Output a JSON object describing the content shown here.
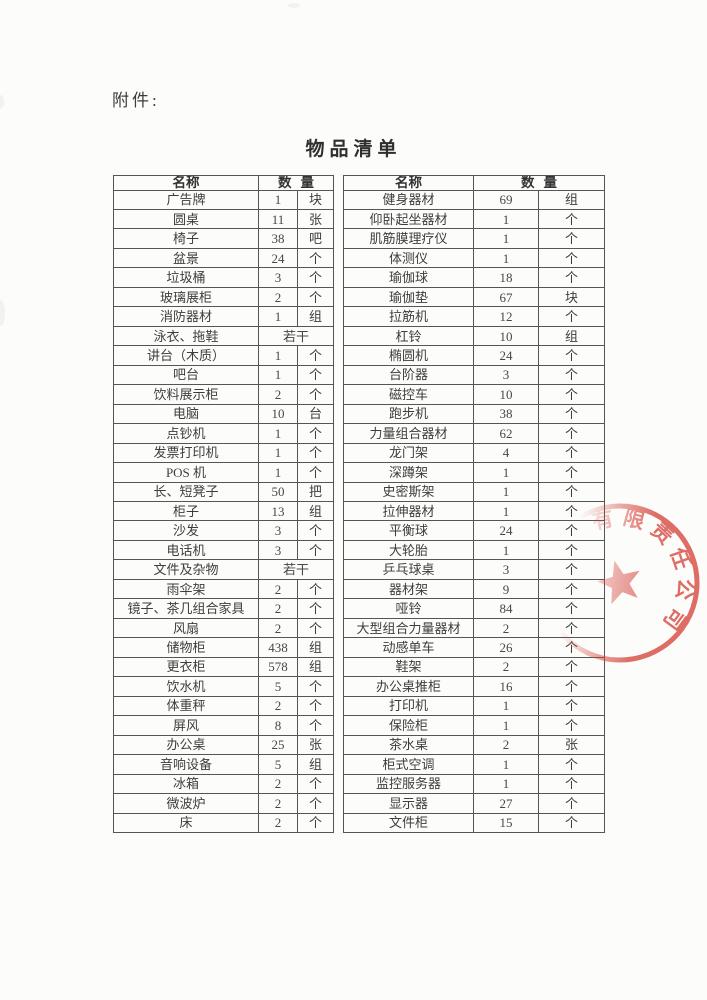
{
  "page": {
    "attachment_label": "附件:",
    "title": "物品清单"
  },
  "tables": [
    {
      "header": {
        "name": "名称",
        "quantity": "数量"
      },
      "rows": [
        {
          "name": "广告牌",
          "quantity": "1",
          "unit": "块"
        },
        {
          "name": "圆桌",
          "quantity": "11",
          "unit": "张"
        },
        {
          "name": "椅子",
          "quantity": "38",
          "unit": "吧"
        },
        {
          "name": "盆景",
          "quantity": "24",
          "unit": "个"
        },
        {
          "name": "垃圾桶",
          "quantity": "3",
          "unit": "个"
        },
        {
          "name": "玻璃展柜",
          "quantity": "2",
          "unit": "个"
        },
        {
          "name": "消防器材",
          "quantity": "1",
          "unit": "组"
        },
        {
          "name": "泳衣、拖鞋",
          "quantity": "若干",
          "unit": null
        },
        {
          "name": "讲台（木质）",
          "quantity": "1",
          "unit": "个"
        },
        {
          "name": "吧台",
          "quantity": "1",
          "unit": "个"
        },
        {
          "name": "饮料展示柜",
          "quantity": "2",
          "unit": "个"
        },
        {
          "name": "电脑",
          "quantity": "10",
          "unit": "台"
        },
        {
          "name": "点钞机",
          "quantity": "1",
          "unit": "个"
        },
        {
          "name": "发票打印机",
          "quantity": "1",
          "unit": "个"
        },
        {
          "name": "POS 机",
          "quantity": "1",
          "unit": "个"
        },
        {
          "name": "长、短凳子",
          "quantity": "50",
          "unit": "把"
        },
        {
          "name": "柜子",
          "quantity": "13",
          "unit": "组"
        },
        {
          "name": "沙发",
          "quantity": "3",
          "unit": "个"
        },
        {
          "name": "电话机",
          "quantity": "3",
          "unit": "个"
        },
        {
          "name": "文件及杂物",
          "quantity": "若干",
          "unit": null
        },
        {
          "name": "雨伞架",
          "quantity": "2",
          "unit": "个"
        },
        {
          "name": "镜子、茶几组合家具",
          "quantity": "2",
          "unit": "个"
        },
        {
          "name": "风扇",
          "quantity": "2",
          "unit": "个"
        },
        {
          "name": "储物柜",
          "quantity": "438",
          "unit": "组"
        },
        {
          "name": "更衣柜",
          "quantity": "578",
          "unit": "组"
        },
        {
          "name": "饮水机",
          "quantity": "5",
          "unit": "个"
        },
        {
          "name": "体重秤",
          "quantity": "2",
          "unit": "个"
        },
        {
          "name": "屏风",
          "quantity": "8",
          "unit": "个"
        },
        {
          "name": "办公桌",
          "quantity": "25",
          "unit": "张"
        },
        {
          "name": "音响设备",
          "quantity": "5",
          "unit": "组"
        },
        {
          "name": "冰箱",
          "quantity": "2",
          "unit": "个"
        },
        {
          "name": "微波炉",
          "quantity": "2",
          "unit": "个"
        },
        {
          "name": "床",
          "quantity": "2",
          "unit": "个"
        }
      ]
    },
    {
      "header": {
        "name": "名称",
        "quantity": "数量"
      },
      "rows": [
        {
          "name": "健身器材",
          "quantity": "69",
          "unit": "组"
        },
        {
          "name": "仰卧起坐器材",
          "quantity": "1",
          "unit": "个"
        },
        {
          "name": "肌筋膜理疗仪",
          "quantity": "1",
          "unit": "个"
        },
        {
          "name": "体测仪",
          "quantity": "1",
          "unit": "个"
        },
        {
          "name": "瑜伽球",
          "quantity": "18",
          "unit": "个"
        },
        {
          "name": "瑜伽垫",
          "quantity": "67",
          "unit": "块"
        },
        {
          "name": "拉筋机",
          "quantity": "12",
          "unit": "个"
        },
        {
          "name": "杠铃",
          "quantity": "10",
          "unit": "组"
        },
        {
          "name": "椭圆机",
          "quantity": "24",
          "unit": "个"
        },
        {
          "name": "台阶器",
          "quantity": "3",
          "unit": "个"
        },
        {
          "name": "磁控车",
          "quantity": "10",
          "unit": "个"
        },
        {
          "name": "跑步机",
          "quantity": "38",
          "unit": "个"
        },
        {
          "name": "力量组合器材",
          "quantity": "62",
          "unit": "个"
        },
        {
          "name": "龙门架",
          "quantity": "4",
          "unit": "个"
        },
        {
          "name": "深蹲架",
          "quantity": "1",
          "unit": "个"
        },
        {
          "name": "史密斯架",
          "quantity": "1",
          "unit": "个"
        },
        {
          "name": "拉伸器材",
          "quantity": "1",
          "unit": "个"
        },
        {
          "name": "平衡球",
          "quantity": "24",
          "unit": "个"
        },
        {
          "name": "大轮胎",
          "quantity": "1",
          "unit": "个"
        },
        {
          "name": "乒乓球桌",
          "quantity": "3",
          "unit": "个"
        },
        {
          "name": "器材架",
          "quantity": "9",
          "unit": "个"
        },
        {
          "name": "哑铃",
          "quantity": "84",
          "unit": "个"
        },
        {
          "name": "大型组合力量器材",
          "quantity": "2",
          "unit": "个"
        },
        {
          "name": "动感单车",
          "quantity": "26",
          "unit": "个"
        },
        {
          "name": "鞋架",
          "quantity": "2",
          "unit": "个"
        },
        {
          "name": "办公桌推柜",
          "quantity": "16",
          "unit": "个"
        },
        {
          "name": "打印机",
          "quantity": "1",
          "unit": "个"
        },
        {
          "name": "保险柜",
          "quantity": "1",
          "unit": "个"
        },
        {
          "name": "茶水桌",
          "quantity": "2",
          "unit": "张"
        },
        {
          "name": "柜式空调",
          "quantity": "1",
          "unit": "个"
        },
        {
          "name": "监控服务器",
          "quantity": "1",
          "unit": "个"
        },
        {
          "name": "显示器",
          "quantity": "27",
          "unit": "个"
        },
        {
          "name": "文件柜",
          "quantity": "15",
          "unit": "个"
        }
      ]
    }
  ],
  "stamp": {
    "visible_text": "有限责任公司",
    "color": "#d5443a"
  }
}
